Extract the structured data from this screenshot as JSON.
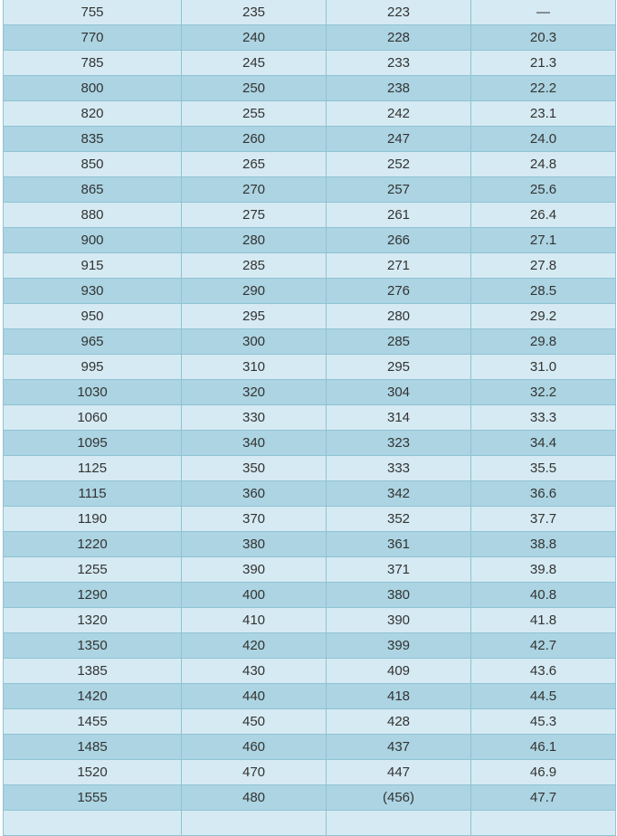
{
  "colors": {
    "row_light": "#d5eaf2",
    "row_dark": "#acd4e2",
    "border": "#8fc3d6"
  },
  "rows": [
    [
      "755",
      "235",
      "223",
      "—"
    ],
    [
      "770",
      "240",
      "228",
      "20.3"
    ],
    [
      "785",
      "245",
      "233",
      "21.3"
    ],
    [
      "800",
      "250",
      "238",
      "22.2"
    ],
    [
      "820",
      "255",
      "242",
      "23.1"
    ],
    [
      "835",
      "260",
      "247",
      "24.0"
    ],
    [
      "850",
      "265",
      "252",
      "24.8"
    ],
    [
      "865",
      "270",
      "257",
      "25.6"
    ],
    [
      "880",
      "275",
      "261",
      "26.4"
    ],
    [
      "900",
      "280",
      "266",
      "27.1"
    ],
    [
      "915",
      "285",
      "271",
      "27.8"
    ],
    [
      "930",
      "290",
      "276",
      "28.5"
    ],
    [
      "950",
      "295",
      "280",
      "29.2"
    ],
    [
      "965",
      "300",
      "285",
      "29.8"
    ],
    [
      "995",
      "310",
      "295",
      "31.0"
    ],
    [
      "1030",
      "320",
      "304",
      "32.2"
    ],
    [
      "1060",
      "330",
      "314",
      "33.3"
    ],
    [
      "1095",
      "340",
      "323",
      "34.4"
    ],
    [
      "1125",
      "350",
      "333",
      "35.5"
    ],
    [
      "1115",
      "360",
      "342",
      "36.6"
    ],
    [
      "1190",
      "370",
      "352",
      "37.7"
    ],
    [
      "1220",
      "380",
      "361",
      "38.8"
    ],
    [
      "1255",
      "390",
      "371",
      "39.8"
    ],
    [
      "1290",
      "400",
      "380",
      "40.8"
    ],
    [
      "1320",
      "410",
      "390",
      "41.8"
    ],
    [
      "1350",
      "420",
      "399",
      "42.7"
    ],
    [
      "1385",
      "430",
      "409",
      "43.6"
    ],
    [
      "1420",
      "440",
      "418",
      "44.5"
    ],
    [
      "1455",
      "450",
      "428",
      "45.3"
    ],
    [
      "1485",
      "460",
      "437",
      "46.1"
    ],
    [
      "1520",
      "470",
      "447",
      "46.9"
    ],
    [
      "1555",
      "480",
      "(456)",
      "47.7"
    ],
    [
      "",
      "",
      "",
      ""
    ]
  ]
}
